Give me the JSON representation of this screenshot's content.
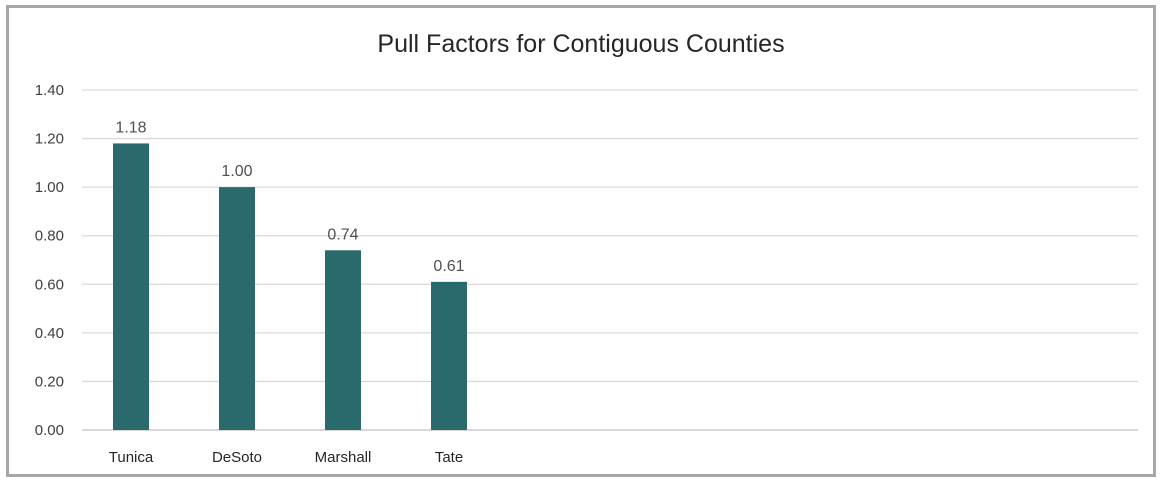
{
  "chart_data": {
    "type": "bar",
    "title": "Pull Factors for Contiguous Counties",
    "xlabel": "",
    "ylabel": "",
    "categories": [
      "Tunica",
      "DeSoto",
      "Marshall",
      "Tate"
    ],
    "values": [
      1.18,
      1.0,
      0.74,
      0.61
    ],
    "value_labels": [
      "1.18",
      "1.00",
      "0.74",
      "0.61"
    ],
    "ylim": [
      0,
      1.4
    ],
    "yticks": [
      0,
      0.2,
      0.4,
      0.6,
      0.8,
      1.0,
      1.2,
      1.4
    ],
    "ytick_labels": [
      "0.00",
      "0.20",
      "0.40",
      "0.60",
      "0.80",
      "1.00",
      "1.20",
      "1.40"
    ],
    "grid": true,
    "legend": "none",
    "bar_color": "#2a6a6c",
    "grid_color": "#d9d9d9"
  }
}
